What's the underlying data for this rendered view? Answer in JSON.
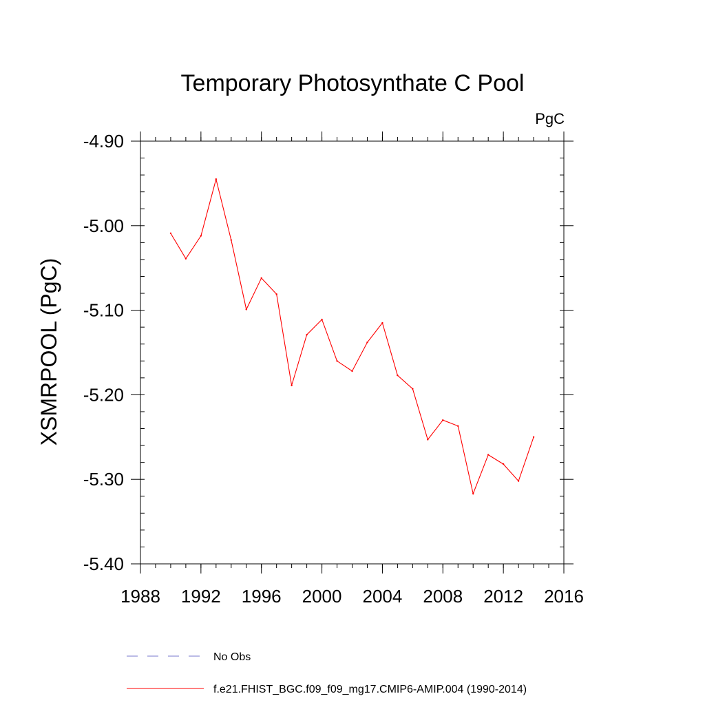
{
  "chart_data": {
    "type": "line",
    "title": "Temporary Photosynthate C Pool",
    "units_label": "PgC",
    "xlabel": "",
    "ylabel": "XSMRPOOL  (PgC)",
    "xlim": [
      1988,
      2016
    ],
    "ylim": [
      -5.4,
      -4.9
    ],
    "x_ticks": [
      "1988",
      "1992",
      "1996",
      "2000",
      "2004",
      "2008",
      "2012",
      "2016"
    ],
    "y_ticks": [
      "-4.90",
      "-5.00",
      "-5.10",
      "-5.20",
      "-5.30",
      "-5.40"
    ],
    "grid": false,
    "legend_position": "bottom",
    "series": [
      {
        "name": "f.e21.FHIST_BGC.f09_f09_mg17.CMIP6-AMIP.004 (1990-2014)",
        "color": "#ff0000",
        "style": "solid",
        "x": [
          1990,
          1991,
          1992,
          1993,
          1994,
          1995,
          1996,
          1997,
          1998,
          1999,
          2000,
          2001,
          2002,
          2003,
          2004,
          2005,
          2006,
          2007,
          2008,
          2009,
          2010,
          2011,
          2012,
          2013,
          2014
        ],
        "y": [
          -5.009,
          -5.039,
          -5.012,
          -4.945,
          -5.017,
          -5.099,
          -5.062,
          -5.081,
          -5.189,
          -5.129,
          -5.111,
          -5.16,
          -5.172,
          -5.138,
          -5.115,
          -5.177,
          -5.193,
          -5.253,
          -5.23,
          -5.237,
          -5.317,
          -5.271,
          -5.282,
          -5.302,
          -5.25
        ]
      }
    ],
    "legend": [
      {
        "label": "No Obs",
        "color": "#7777cc",
        "style": "dashed"
      },
      {
        "label": "f.e21.FHIST_BGC.f09_f09_mg17.CMIP6-AMIP.004 (1990-2014)",
        "color": "#ff0000",
        "style": "solid"
      }
    ]
  }
}
